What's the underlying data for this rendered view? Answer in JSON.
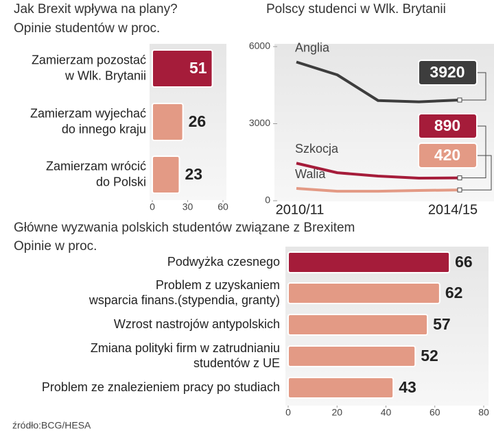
{
  "chart_data": [
    {
      "type": "bar",
      "orientation": "horizontal",
      "title": "Jak Brexit wpływa na plany?",
      "subtitle": "Opinie studentów w proc.",
      "categories": [
        [
          "Zamierzam pozostać",
          "w Wlk. Brytanii"
        ],
        [
          "Zamierzam wyjechać",
          "do innego kraju"
        ],
        [
          "Zamierzam wrócić",
          "do Polski"
        ]
      ],
      "values": [
        51,
        26,
        23
      ],
      "colors": [
        "#a51c3a",
        "#e39a85",
        "#e39a85"
      ],
      "xlim": [
        0,
        60
      ],
      "xticks": [
        0,
        30,
        60
      ]
    },
    {
      "type": "line",
      "title": "Polscy studenci w Wlk. Brytanii",
      "categories": [
        "2010/11",
        null,
        null,
        null,
        "2014/15"
      ],
      "series": [
        {
          "name": "Anglia",
          "color": "#3d3d3d",
          "values": [
            5400,
            4900,
            3900,
            3850,
            3920
          ]
        },
        {
          "name": "Szkocja",
          "color": "#a51c3a",
          "values": [
            1460,
            1090,
            960,
            880,
            890
          ]
        },
        {
          "name": "Walia",
          "color": "#e39a85",
          "values": [
            480,
            370,
            370,
            400,
            420
          ]
        }
      ],
      "ylim": [
        0,
        6000
      ],
      "yticks": [
        0,
        3000,
        6000
      ]
    },
    {
      "type": "bar",
      "orientation": "horizontal",
      "title": "Główne wyzwania polskich studentów związane z Brexitem",
      "subtitle": "Opinie  w proc.",
      "categories": [
        [
          "Podwyżka czesnego"
        ],
        [
          "Problem z uzyskaniem",
          "wsparcia finans.(stypendia, granty)"
        ],
        [
          "Wzrost nastrojów antypolskich"
        ],
        [
          "Zmiana polityki  firm w zatrudnianiu",
          "studentów z UE"
        ],
        [
          "Problem ze znalezieniem pracy po studiach"
        ]
      ],
      "values": [
        66,
        62,
        57,
        52,
        43
      ],
      "colors": [
        "#a51c3a",
        "#e39a85",
        "#e39a85",
        "#e39a85",
        "#e39a85"
      ],
      "xlim": [
        0,
        80
      ],
      "xticks": [
        0,
        20,
        40,
        60,
        80
      ]
    }
  ],
  "source": "źródło:BCG/HESA"
}
